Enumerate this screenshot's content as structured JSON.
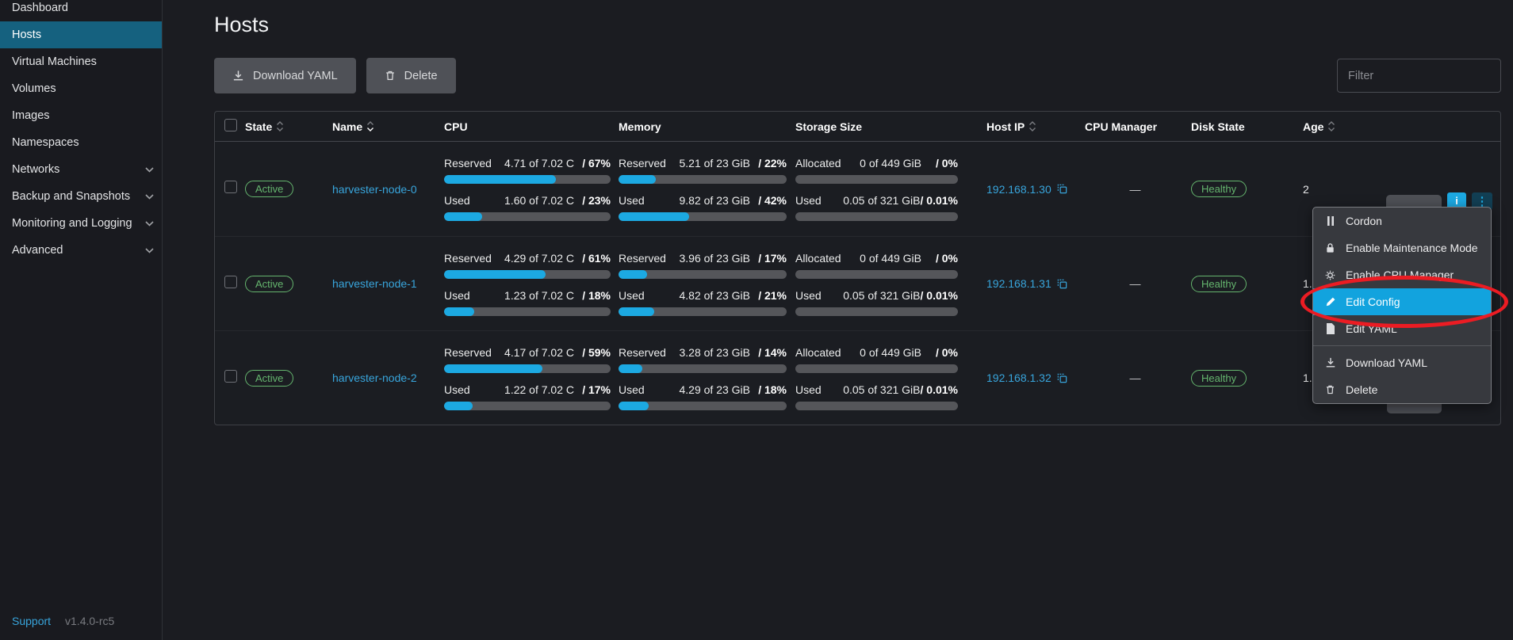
{
  "sidebar": {
    "items": [
      {
        "label": "Dashboard"
      },
      {
        "label": "Hosts",
        "active": true
      },
      {
        "label": "Virtual Machines"
      },
      {
        "label": "Volumes"
      },
      {
        "label": "Images"
      },
      {
        "label": "Namespaces"
      },
      {
        "label": "Networks",
        "expandable": true
      },
      {
        "label": "Backup and Snapshots",
        "expandable": true
      },
      {
        "label": "Monitoring and Logging",
        "expandable": true
      },
      {
        "label": "Advanced",
        "expandable": true
      }
    ],
    "footer": {
      "support_label": "Support",
      "version": "v1.4.0-rc5"
    }
  },
  "page": {
    "title": "Hosts"
  },
  "toolbar": {
    "download_yaml_label": "Download YAML",
    "delete_label": "Delete",
    "filter_placeholder": "Filter"
  },
  "table": {
    "columns": [
      {
        "label": "State",
        "sortable": true
      },
      {
        "label": "Name",
        "sortable": true,
        "sorted": true
      },
      {
        "label": "CPU"
      },
      {
        "label": "Memory"
      },
      {
        "label": "Storage Size"
      },
      {
        "label": "Host IP",
        "sortable": true
      },
      {
        "label": "CPU Manager"
      },
      {
        "label": "Disk State"
      },
      {
        "label": "Age",
        "sortable": true
      }
    ],
    "rows": [
      {
        "state": "Active",
        "name": "harvester-node-0",
        "cpu": [
          {
            "label": "Reserved",
            "value": "4.71 of 7.02 C",
            "percent_text": "/ 67%",
            "percent": 67
          },
          {
            "label": "Used",
            "value": "1.60 of 7.02 C",
            "percent_text": "/ 23%",
            "percent": 23
          }
        ],
        "memory": [
          {
            "label": "Reserved",
            "value": "5.21 of 23 GiB",
            "percent_text": "/ 22%",
            "percent": 22
          },
          {
            "label": "Used",
            "value": "9.82 of 23 GiB",
            "percent_text": "/ 42%",
            "percent": 42
          }
        ],
        "storage": [
          {
            "label": "Allocated",
            "value": "0 of 449 GiB",
            "percent_text": "/ 0%",
            "percent": 0
          },
          {
            "label": "Used",
            "value": "0.05 of 321 GiB",
            "percent_text": "/ 0.01%",
            "percent": 0
          }
        ],
        "host_ip": "192.168.1.30",
        "cpu_manager": "—",
        "disk_state": "Healthy",
        "age_visible": "2"
      },
      {
        "state": "Active",
        "name": "harvester-node-1",
        "cpu": [
          {
            "label": "Reserved",
            "value": "4.29 of 7.02 C",
            "percent_text": "/ 61%",
            "percent": 61
          },
          {
            "label": "Used",
            "value": "1.23 of 7.02 C",
            "percent_text": "/ 18%",
            "percent": 18
          }
        ],
        "memory": [
          {
            "label": "Reserved",
            "value": "3.96 of 23 GiB",
            "percent_text": "/ 17%",
            "percent": 17
          },
          {
            "label": "Used",
            "value": "4.82 of 23 GiB",
            "percent_text": "/ 21%",
            "percent": 21
          }
        ],
        "storage": [
          {
            "label": "Allocated",
            "value": "0 of 449 GiB",
            "percent_text": "/ 0%",
            "percent": 0
          },
          {
            "label": "Used",
            "value": "0.05 of 321 GiB",
            "percent_text": "/ 0.01%",
            "percent": 0
          }
        ],
        "host_ip": "192.168.1.31",
        "cpu_manager": "—",
        "disk_state": "Healthy",
        "age_visible": "1."
      },
      {
        "state": "Active",
        "name": "harvester-node-2",
        "cpu": [
          {
            "label": "Reserved",
            "value": "4.17 of 7.02 C",
            "percent_text": "/ 59%",
            "percent": 59
          },
          {
            "label": "Used",
            "value": "1.22 of 7.02 C",
            "percent_text": "/ 17%",
            "percent": 17
          }
        ],
        "memory": [
          {
            "label": "Reserved",
            "value": "3.28 of 23 GiB",
            "percent_text": "/ 14%",
            "percent": 14
          },
          {
            "label": "Used",
            "value": "4.29 of 23 GiB",
            "percent_text": "/ 18%",
            "percent": 18
          }
        ],
        "storage": [
          {
            "label": "Allocated",
            "value": "0 of 449 GiB",
            "percent_text": "/ 0%",
            "percent": 0
          },
          {
            "label": "Used",
            "value": "0.05 of 321 GiB",
            "percent_text": "/ 0.01%",
            "percent": 0
          }
        ],
        "host_ip": "192.168.1.32",
        "cpu_manager": "—",
        "disk_state": "Healthy",
        "age_visible": "1."
      }
    ]
  },
  "context_menu": {
    "items": [
      {
        "label": "Cordon",
        "icon": "pause-icon"
      },
      {
        "label": "Enable Maintenance Mode",
        "icon": "lock-icon"
      },
      {
        "label": "Enable CPU Manager",
        "icon": "cpu-manager-icon"
      },
      {
        "label": "Edit Config",
        "icon": "edit-pencil-icon",
        "highlighted": true
      },
      {
        "label": "Edit YAML",
        "icon": "file-icon"
      },
      {
        "divider": true
      },
      {
        "label": "Download YAML",
        "icon": "download-icon"
      },
      {
        "label": "Delete",
        "icon": "trash-icon"
      }
    ]
  },
  "row_actions": {
    "info_label": "i",
    "kebab_label": "⋮"
  },
  "colors": {
    "accent_blue": "#1ca9e2",
    "link_blue": "#38a5dc",
    "badge_green": "#65b56e",
    "menu_highlight": "#12a3de",
    "annotation_red": "#eb1c23",
    "sidebar_active": "#15617f"
  }
}
